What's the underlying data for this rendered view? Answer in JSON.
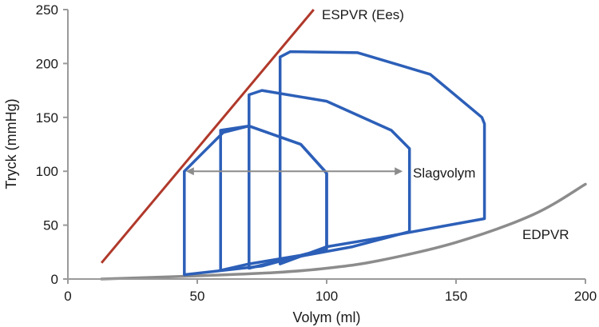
{
  "chart_data": {
    "type": "line",
    "xlabel": "Volym (ml)",
    "ylabel": "Tryck (mmHg)",
    "xlim": [
      0,
      200
    ],
    "ylim": [
      0,
      250
    ],
    "xticks": [
      0,
      50,
      100,
      150,
      200
    ],
    "yticks": [
      0,
      50,
      100,
      150,
      200,
      250
    ],
    "grid": false,
    "colors": {
      "espvr": "#b0392b",
      "loops": "#2c5fb8",
      "edpvr": "#8c8c8c",
      "axes": "#9a9a9a",
      "arrow": "#8c8c8c"
    },
    "espvr": {
      "points": [
        [
          13,
          15
        ],
        [
          95,
          250
        ]
      ]
    },
    "edpvr": {
      "points": [
        [
          13,
          0
        ],
        [
          50,
          3
        ],
        [
          80,
          6
        ],
        [
          100,
          10
        ],
        [
          120,
          17
        ],
        [
          150,
          34
        ],
        [
          180,
          60
        ],
        [
          200,
          88
        ]
      ]
    },
    "loops": [
      {
        "points": [
          [
            45,
            4
          ],
          [
            45,
            100
          ],
          [
            60,
            136
          ],
          [
            70,
            142
          ],
          [
            90,
            125
          ],
          [
            99,
            101
          ],
          [
            100,
            98
          ],
          [
            100,
            30
          ],
          [
            95,
            25
          ],
          [
            75,
            12
          ],
          [
            45,
            4
          ]
        ]
      },
      {
        "points": [
          [
            59,
            8
          ],
          [
            59,
            138
          ],
          [
            70,
            142
          ],
          [
            90,
            125
          ],
          [
            99,
            101
          ],
          [
            100,
            98
          ],
          [
            100,
            28
          ],
          [
            90,
            22
          ],
          [
            70,
            14
          ],
          [
            59,
            8
          ]
        ]
      },
      {
        "points": [
          [
            70,
            10
          ],
          [
            70,
            171
          ],
          [
            75,
            175
          ],
          [
            100,
            165
          ],
          [
            125,
            138
          ],
          [
            132,
            121
          ],
          [
            132,
            44
          ],
          [
            110,
            30
          ],
          [
            85,
            19
          ],
          [
            70,
            10
          ]
        ]
      },
      {
        "points": [
          [
            82,
            14
          ],
          [
            82,
            206
          ],
          [
            86,
            211
          ],
          [
            112,
            210
          ],
          [
            140,
            190
          ],
          [
            160,
            150
          ],
          [
            161,
            144
          ],
          [
            161,
            56
          ],
          [
            145,
            49
          ],
          [
            120,
            38
          ],
          [
            100,
            30
          ],
          [
            82,
            14
          ]
        ]
      }
    ],
    "stroke_arrow": {
      "from": [
        45,
        100
      ],
      "to": [
        130,
        100
      ]
    },
    "annotations": {
      "espvr": "ESPVR (Ees)",
      "stroke_volume": "Slagvolym",
      "edpvr": "EDPVR"
    }
  }
}
